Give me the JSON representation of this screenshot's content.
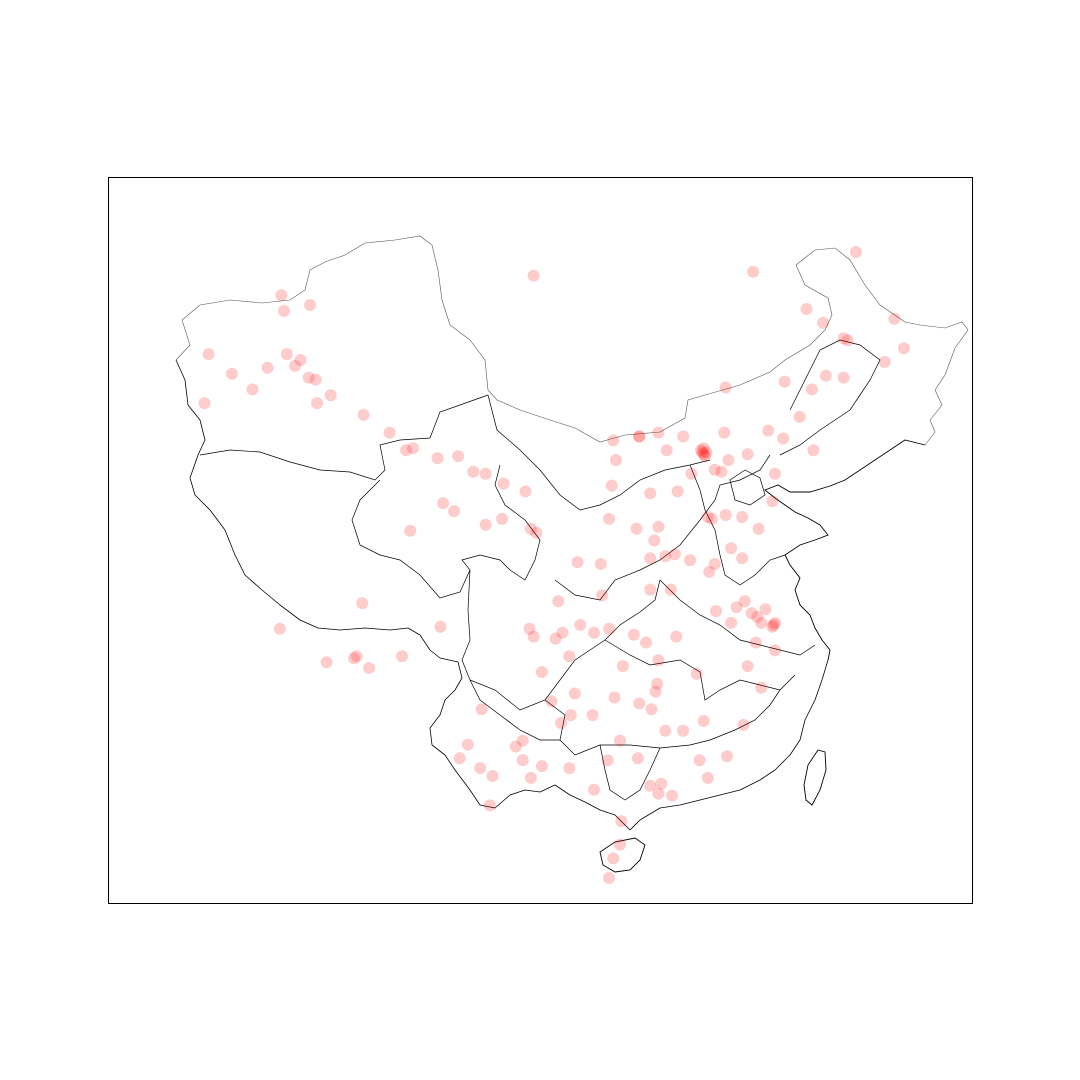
{
  "chart_data": {
    "type": "scatter",
    "title": "",
    "xlabel": "",
    "ylabel": "",
    "xlim": [
      73,
      136
    ],
    "ylim": [
      17,
      54
    ],
    "marker_color": "#ff0000",
    "marker_alpha": 0.2,
    "grid": false,
    "legend": "none",
    "projection": "lon-lat",
    "points": [
      [
        104.0,
        49.0
      ],
      [
        87.7,
        47.5
      ],
      [
        85.6,
        48.0
      ],
      [
        85.8,
        47.2
      ],
      [
        80.3,
        45.0
      ],
      [
        82.0,
        44.0
      ],
      [
        83.5,
        43.2
      ],
      [
        80.0,
        42.5
      ],
      [
        86.6,
        44.4
      ],
      [
        87.6,
        43.8
      ],
      [
        89.2,
        42.9
      ],
      [
        88.1,
        43.7
      ],
      [
        86.0,
        45.0
      ],
      [
        87.0,
        44.7
      ],
      [
        84.6,
        44.3
      ],
      [
        88.2,
        42.5
      ],
      [
        91.6,
        41.9
      ],
      [
        93.5,
        41.0
      ],
      [
        94.7,
        40.1
      ],
      [
        95.2,
        40.2
      ],
      [
        97.0,
        39.7
      ],
      [
        98.5,
        39.8
      ],
      [
        99.6,
        39.0
      ],
      [
        100.5,
        38.9
      ],
      [
        101.8,
        38.4
      ],
      [
        103.4,
        38.0
      ],
      [
        103.8,
        36.1
      ],
      [
        104.2,
        35.9
      ],
      [
        101.7,
        36.6
      ],
      [
        100.5,
        36.3
      ],
      [
        97.4,
        37.4
      ],
      [
        98.2,
        37.0
      ],
      [
        95.0,
        36.0
      ],
      [
        91.1,
        29.6
      ],
      [
        90.9,
        29.5
      ],
      [
        88.9,
        29.3
      ],
      [
        94.4,
        29.6
      ],
      [
        92.0,
        29.0
      ],
      [
        85.5,
        31.0
      ],
      [
        91.5,
        32.3
      ],
      [
        97.2,
        31.1
      ],
      [
        100.2,
        26.9
      ],
      [
        102.7,
        25.0
      ],
      [
        103.2,
        25.3
      ],
      [
        100.8,
        22.0
      ],
      [
        101.0,
        23.5
      ],
      [
        99.2,
        25.1
      ],
      [
        98.6,
        24.4
      ],
      [
        103.8,
        23.4
      ],
      [
        104.6,
        24.0
      ],
      [
        106.7,
        26.6
      ],
      [
        107.0,
        27.7
      ],
      [
        105.3,
        27.3
      ],
      [
        106.0,
        26.2
      ],
      [
        108.3,
        26.6
      ],
      [
        104.0,
        30.6
      ],
      [
        103.7,
        31.0
      ],
      [
        104.6,
        28.8
      ],
      [
        105.8,
        32.4
      ],
      [
        106.6,
        29.6
      ],
      [
        107.4,
        31.2
      ],
      [
        108.4,
        30.8
      ],
      [
        109.5,
        31.0
      ],
      [
        106.1,
        30.8
      ],
      [
        105.6,
        30.5
      ],
      [
        108.9,
        34.3
      ],
      [
        107.2,
        34.4
      ],
      [
        109.5,
        36.6
      ],
      [
        109.7,
        38.3
      ],
      [
        109.0,
        32.7
      ],
      [
        111.7,
        40.8
      ],
      [
        109.8,
        40.6
      ],
      [
        110.0,
        39.6
      ],
      [
        113.1,
        41.0
      ],
      [
        113.7,
        40.1
      ],
      [
        112.5,
        37.9
      ],
      [
        111.5,
        36.1
      ],
      [
        113.1,
        36.2
      ],
      [
        112.8,
        35.5
      ],
      [
        112.5,
        34.6
      ],
      [
        113.6,
        34.7
      ],
      [
        114.3,
        34.8
      ],
      [
        115.4,
        34.5
      ],
      [
        114.0,
        33.0
      ],
      [
        112.5,
        33.0
      ],
      [
        114.4,
        30.6
      ],
      [
        112.2,
        30.3
      ],
      [
        111.3,
        30.7
      ],
      [
        113.0,
        28.2
      ],
      [
        112.9,
        27.8
      ],
      [
        113.1,
        29.4
      ],
      [
        110.5,
        29.1
      ],
      [
        111.7,
        27.2
      ],
      [
        112.6,
        26.9
      ],
      [
        113.6,
        25.8
      ],
      [
        115.9,
        28.7
      ],
      [
        114.9,
        25.8
      ],
      [
        116.4,
        26.3
      ],
      [
        117.3,
        31.9
      ],
      [
        118.4,
        31.3
      ],
      [
        116.8,
        33.9
      ],
      [
        118.8,
        32.1
      ],
      [
        120.6,
        31.3
      ],
      [
        120.3,
        31.6
      ],
      [
        119.9,
        31.8
      ],
      [
        119.4,
        32.4
      ],
      [
        120.9,
        32.0
      ],
      [
        119.2,
        34.6
      ],
      [
        117.2,
        34.3
      ],
      [
        121.5,
        31.2
      ],
      [
        121.4,
        31.1
      ],
      [
        121.6,
        31.3
      ],
      [
        120.2,
        30.3
      ],
      [
        121.6,
        29.9
      ],
      [
        120.6,
        28.0
      ],
      [
        119.6,
        29.1
      ],
      [
        119.3,
        26.1
      ],
      [
        118.1,
        24.5
      ],
      [
        116.7,
        23.4
      ],
      [
        113.3,
        23.1
      ],
      [
        114.1,
        22.5
      ],
      [
        113.1,
        22.6
      ],
      [
        110.4,
        21.2
      ],
      [
        112.5,
        23.0
      ],
      [
        116.1,
        24.3
      ],
      [
        108.4,
        22.8
      ],
      [
        110.3,
        25.3
      ],
      [
        109.4,
        24.3
      ],
      [
        106.6,
        23.9
      ],
      [
        111.6,
        24.4
      ],
      [
        110.3,
        20.0
      ],
      [
        109.5,
        18.3
      ],
      [
        109.8,
        19.3
      ],
      [
        116.4,
        39.9
      ],
      [
        116.3,
        40.0
      ],
      [
        116.5,
        39.8
      ],
      [
        116.2,
        40.1
      ],
      [
        116.6,
        40.0
      ],
      [
        116.4,
        40.2
      ],
      [
        117.2,
        39.1
      ],
      [
        117.7,
        39.0
      ],
      [
        114.5,
        38.0
      ],
      [
        115.5,
        38.9
      ],
      [
        118.2,
        39.6
      ],
      [
        119.6,
        39.9
      ],
      [
        114.9,
        40.8
      ],
      [
        117.9,
        41.0
      ],
      [
        116.7,
        36.7
      ],
      [
        117.0,
        36.6
      ],
      [
        120.4,
        36.1
      ],
      [
        121.4,
        37.5
      ],
      [
        119.2,
        36.7
      ],
      [
        118.0,
        36.8
      ],
      [
        118.4,
        35.1
      ],
      [
        123.4,
        41.8
      ],
      [
        121.6,
        38.9
      ],
      [
        122.2,
        40.7
      ],
      [
        121.1,
        41.1
      ],
      [
        124.4,
        40.1
      ],
      [
        125.3,
        43.9
      ],
      [
        126.6,
        43.8
      ],
      [
        124.3,
        43.2
      ],
      [
        126.6,
        45.8
      ],
      [
        126.9,
        45.7
      ],
      [
        123.9,
        47.3
      ],
      [
        125.1,
        46.6
      ],
      [
        129.6,
        44.6
      ],
      [
        130.3,
        46.8
      ],
      [
        131.0,
        45.3
      ],
      [
        127.5,
        50.2
      ],
      [
        120.0,
        49.2
      ],
      [
        118.0,
        43.3
      ],
      [
        122.3,
        43.6
      ],
      [
        111.7,
        40.8
      ],
      [
        109.9,
        27.5
      ],
      [
        103.2,
        24.3
      ],
      [
        100.1,
        23.9
      ]
    ]
  }
}
